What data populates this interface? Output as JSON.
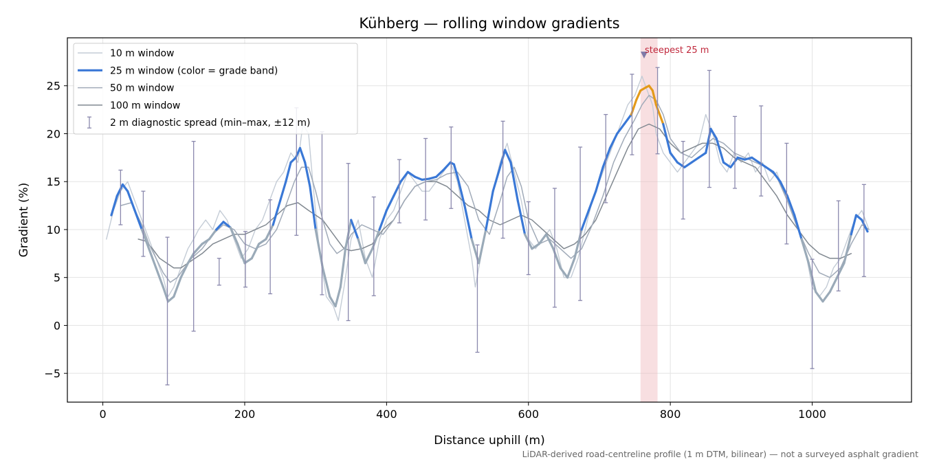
{
  "chart_data": {
    "type": "line",
    "title": "Kühberg — rolling window gradients",
    "xlabel": "Distance uphill (m)",
    "ylabel": "Gradient (%)",
    "xlim": [
      -50,
      1140
    ],
    "ylim": [
      -8,
      30
    ],
    "x_ticks": [
      0,
      200,
      400,
      600,
      800,
      1000
    ],
    "y_ticks": [
      -5,
      0,
      5,
      10,
      15,
      20,
      25
    ],
    "grid": true,
    "legend_position": "upper-left",
    "footnote": "LiDAR-derived road-centreline profile (1 m DTM, bilinear) — not a surveyed asphalt gradient",
    "legend": [
      {
        "label": "10 m window",
        "key": "w10"
      },
      {
        "label": "25 m window (color = grade band)",
        "key": "w25"
      },
      {
        "label": "50 m window",
        "key": "w50"
      },
      {
        "label": "100 m window",
        "key": "w100"
      },
      {
        "label": "2 m diagnostic spread (min–max, ±12 m)",
        "key": "err"
      }
    ],
    "colors": {
      "w10": "#c4ccd6",
      "w25_band_blue": "#3a78d6",
      "w25_band_gray": "#9aaab8",
      "w25_band_orange": "#e39a1a",
      "w25_band_red": "#d62020",
      "w50": "#a0aab8",
      "w100": "#808890",
      "errorbar": "#8a88ad",
      "highlight": "#f0b8bc",
      "marker": "#7f7aa8",
      "annot": "#c0283c"
    },
    "highlight": {
      "x_start": 758,
      "x_end": 782,
      "label": "steepest 25 m",
      "marker_x": 763,
      "marker_y": 28.2
    },
    "series": [
      {
        "name": "10 m window",
        "key": "w10",
        "x": [
          5,
          15,
          25,
          35,
          45,
          55,
          65,
          75,
          85,
          92,
          100,
          110,
          120,
          128,
          135,
          145,
          155,
          165,
          175,
          185,
          195,
          205,
          215,
          225,
          235,
          245,
          255,
          265,
          275,
          282,
          290,
          296,
          305,
          315,
          325,
          332,
          340,
          350,
          360,
          370,
          380,
          390,
          400,
          410,
          420,
          430,
          440,
          450,
          460,
          470,
          480,
          490,
          500,
          510,
          520,
          525,
          530,
          540,
          550,
          560,
          570,
          580,
          590,
          600,
          610,
          620,
          630,
          640,
          650,
          660,
          670,
          680,
          690,
          700,
          710,
          720,
          730,
          740,
          750,
          760,
          765,
          770,
          775,
          780,
          790,
          800,
          810,
          820,
          830,
          840,
          850,
          860,
          870,
          880,
          890,
          900,
          910,
          920,
          930,
          940,
          950,
          960,
          970,
          980,
          990,
          1000,
          1010,
          1020,
          1030,
          1040,
          1050,
          1060,
          1070,
          1080
        ],
        "y": [
          9,
          12,
          14,
          15,
          13,
          11,
          9,
          7,
          5,
          3,
          4,
          6,
          8,
          9,
          10,
          11,
          10,
          12,
          11,
          9,
          7,
          8,
          10,
          11,
          13,
          15,
          16,
          18,
          17,
          21,
          20,
          15,
          8,
          3,
          2,
          0.5,
          4,
          9,
          11,
          7,
          5,
          9,
          11,
          12,
          14,
          16,
          15,
          14,
          14,
          15,
          16,
          17,
          15,
          11,
          7,
          4,
          6,
          10,
          14,
          17,
          19,
          16,
          13,
          9,
          8,
          9,
          10,
          8,
          5,
          5,
          7,
          10,
          13,
          15,
          17,
          19,
          21,
          23,
          24,
          26,
          25,
          24,
          23,
          20,
          18,
          17,
          16,
          17,
          18,
          19,
          22,
          20,
          17,
          16,
          18,
          17,
          18,
          16,
          17,
          15,
          16,
          14,
          12,
          10,
          8,
          4,
          3,
          4,
          6,
          7,
          9,
          11,
          12,
          10
        ]
      },
      {
        "name": "25 m window (color = grade band)",
        "key": "w25",
        "x": [
          12,
          20,
          28,
          35,
          45,
          55,
          65,
          75,
          85,
          92,
          100,
          110,
          120,
          128,
          140,
          150,
          160,
          170,
          180,
          190,
          200,
          210,
          220,
          230,
          240,
          250,
          258,
          265,
          272,
          278,
          285,
          292,
          300,
          310,
          320,
          328,
          335,
          342,
          350,
          360,
          370,
          380,
          390,
          400,
          410,
          420,
          430,
          440,
          450,
          460,
          470,
          480,
          490,
          495,
          500,
          510,
          520,
          530,
          540,
          550,
          560,
          567,
          575,
          585,
          595,
          605,
          615,
          625,
          635,
          645,
          655,
          665,
          675,
          685,
          695,
          705,
          715,
          725,
          735,
          745,
          752,
          758,
          765,
          770,
          775,
          780,
          785,
          790,
          800,
          810,
          820,
          830,
          840,
          850,
          857,
          865,
          875,
          885,
          895,
          905,
          915,
          925,
          935,
          945,
          955,
          965,
          975,
          985,
          995,
          1005,
          1015,
          1025,
          1035,
          1045,
          1055,
          1062,
          1070,
          1078
        ],
        "y": [
          11.5,
          13.5,
          14.7,
          14.0,
          12.0,
          10.0,
          8.0,
          6.0,
          4.0,
          2.5,
          3.0,
          5.0,
          6.5,
          7.5,
          8.5,
          9.0,
          10.0,
          10.8,
          10.2,
          8.5,
          6.5,
          7.0,
          8.5,
          9.0,
          10.5,
          13.0,
          15.0,
          17.0,
          17.5,
          18.5,
          17.0,
          14.5,
          10.0,
          6.0,
          3.0,
          2.0,
          4.0,
          8.0,
          11.0,
          9.0,
          6.5,
          8.0,
          10.0,
          12.0,
          13.5,
          15.0,
          16.0,
          15.5,
          15.2,
          15.3,
          15.5,
          16.2,
          17.0,
          16.8,
          15.5,
          12.5,
          9.0,
          6.5,
          10.0,
          14.0,
          16.5,
          18.3,
          17.0,
          13.0,
          9.5,
          8.0,
          8.5,
          9.5,
          8.0,
          6.0,
          5.0,
          7.0,
          10.0,
          12.0,
          14.0,
          16.5,
          18.5,
          20.0,
          21.0,
          22.0,
          23.5,
          24.5,
          24.8,
          25.0,
          24.5,
          23.0,
          22.0,
          21.0,
          18.0,
          17.0,
          16.5,
          17.0,
          17.5,
          18.0,
          20.5,
          19.5,
          17.0,
          16.5,
          17.5,
          17.3,
          17.5,
          17.0,
          16.5,
          16.0,
          15.0,
          13.5,
          11.5,
          9.0,
          6.5,
          3.5,
          2.5,
          3.5,
          5.0,
          6.5,
          9.5,
          11.5,
          11.0,
          9.8
        ]
      },
      {
        "name": "50 m window",
        "key": "w50",
        "x": [
          25,
          40,
          55,
          65,
          75,
          85,
          95,
          105,
          115,
          125,
          140,
          155,
          170,
          185,
          200,
          215,
          230,
          245,
          258,
          270,
          280,
          290,
          300,
          310,
          320,
          330,
          340,
          350,
          365,
          380,
          395,
          410,
          425,
          440,
          455,
          470,
          485,
          500,
          515,
          530,
          545,
          560,
          570,
          580,
          590,
          600,
          615,
          630,
          645,
          660,
          675,
          690,
          705,
          720,
          735,
          750,
          760,
          770,
          780,
          790,
          800,
          815,
          830,
          845,
          860,
          875,
          890,
          905,
          920,
          935,
          950,
          965,
          980,
          995,
          1010,
          1025,
          1040,
          1055,
          1070,
          1080
        ],
        "y": [
          12.5,
          12.8,
          10.5,
          8.5,
          7.0,
          5.5,
          4.5,
          5.0,
          6.0,
          7.0,
          8.0,
          9.5,
          10.5,
          10.0,
          8.5,
          8.0,
          8.5,
          10.0,
          12.5,
          15.0,
          16.5,
          16.5,
          14.0,
          11.0,
          8.5,
          7.5,
          8.0,
          9.5,
          10.5,
          10.0,
          9.5,
          11.0,
          13.0,
          14.5,
          15.0,
          15.2,
          15.8,
          16.0,
          14.5,
          11.0,
          9.5,
          13.0,
          15.5,
          16.5,
          14.5,
          11.0,
          8.5,
          9.0,
          8.0,
          7.0,
          8.0,
          10.5,
          13.5,
          17.0,
          19.5,
          21.5,
          23.0,
          24.0,
          23.5,
          22.0,
          19.5,
          18.0,
          17.5,
          18.5,
          19.5,
          19.0,
          18.0,
          17.5,
          17.0,
          16.5,
          15.5,
          13.0,
          10.0,
          7.5,
          5.5,
          5.0,
          6.0,
          8.5,
          10.5,
          10.0
        ]
      },
      {
        "name": "100 m window",
        "key": "w100",
        "x": [
          50,
          60,
          70,
          80,
          90,
          100,
          110,
          120,
          130,
          140,
          155,
          170,
          185,
          200,
          215,
          230,
          245,
          260,
          275,
          290,
          300,
          310,
          320,
          330,
          340,
          350,
          365,
          380,
          395,
          410,
          425,
          440,
          455,
          470,
          485,
          500,
          515,
          530,
          545,
          560,
          575,
          590,
          605,
          620,
          635,
          650,
          665,
          680,
          695,
          710,
          725,
          740,
          755,
          770,
          785,
          800,
          815,
          830,
          845,
          860,
          875,
          890,
          905,
          920,
          935,
          950,
          965,
          980,
          995,
          1010,
          1025,
          1040,
          1055
        ],
        "y": [
          9.0,
          8.8,
          8.0,
          7.0,
          6.5,
          6.0,
          6.0,
          6.5,
          7.0,
          7.5,
          8.5,
          9.0,
          9.5,
          9.5,
          10.0,
          10.5,
          11.5,
          12.5,
          12.8,
          12.0,
          11.5,
          11.0,
          10.0,
          9.0,
          8.0,
          7.8,
          8.0,
          8.5,
          10.0,
          11.0,
          13.0,
          14.5,
          15.0,
          15.0,
          14.5,
          13.5,
          12.5,
          12.0,
          11.0,
          10.5,
          11.0,
          11.5,
          11.0,
          10.0,
          9.0,
          8.0,
          8.5,
          9.5,
          11.0,
          13.5,
          16.0,
          18.5,
          20.5,
          21.0,
          20.5,
          19.0,
          18.0,
          18.5,
          19.0,
          19.0,
          18.5,
          17.5,
          17.0,
          16.5,
          15.0,
          13.5,
          11.5,
          10.0,
          8.5,
          7.5,
          7.0,
          7.0,
          7.5
        ]
      },
      {
        "name": "2 m diagnostic spread (min–max, ±12 m)",
        "key": "err",
        "points": [
          {
            "x": 25,
            "lo": 10.5,
            "hi": 16.2
          },
          {
            "x": 57,
            "lo": 7.2,
            "hi": 14.0
          },
          {
            "x": 91,
            "lo": -6.2,
            "hi": 9.2
          },
          {
            "x": 128,
            "lo": -0.6,
            "hi": 19.2
          },
          {
            "x": 164,
            "lo": 4.2,
            "hi": 7.0
          },
          {
            "x": 201,
            "lo": 4.0,
            "hi": 9.8
          },
          {
            "x": 236,
            "lo": 3.3,
            "hi": 13.1
          },
          {
            "x": 273,
            "lo": 9.4,
            "hi": 22.7
          },
          {
            "x": 309,
            "lo": 3.2,
            "hi": 20.2
          },
          {
            "x": 346,
            "lo": 0.5,
            "hi": 16.9
          },
          {
            "x": 382,
            "lo": 3.1,
            "hi": 13.4
          },
          {
            "x": 418,
            "lo": 10.7,
            "hi": 17.3
          },
          {
            "x": 455,
            "lo": 11.0,
            "hi": 19.5
          },
          {
            "x": 491,
            "lo": 12.2,
            "hi": 20.7
          },
          {
            "x": 528,
            "lo": -2.8,
            "hi": 8.4
          },
          {
            "x": 564,
            "lo": 9.1,
            "hi": 21.3
          },
          {
            "x": 600,
            "lo": 5.3,
            "hi": 12.9
          },
          {
            "x": 637,
            "lo": 1.9,
            "hi": 14.3
          },
          {
            "x": 673,
            "lo": 2.6,
            "hi": 18.6
          },
          {
            "x": 709,
            "lo": 12.8,
            "hi": 22.0
          },
          {
            "x": 746,
            "lo": 17.8,
            "hi": 26.2
          },
          {
            "x": 782,
            "lo": 17.9,
            "hi": 26.9
          },
          {
            "x": 818,
            "lo": 11.1,
            "hi": 19.2
          },
          {
            "x": 855,
            "lo": 14.4,
            "hi": 26.6
          },
          {
            "x": 891,
            "lo": 14.3,
            "hi": 21.8
          },
          {
            "x": 928,
            "lo": 13.5,
            "hi": 22.9
          },
          {
            "x": 964,
            "lo": 8.5,
            "hi": 19.0
          },
          {
            "x": 1000,
            "lo": -4.5,
            "hi": 6.9
          },
          {
            "x": 1037,
            "lo": 3.6,
            "hi": 13.0
          },
          {
            "x": 1073,
            "lo": 5.1,
            "hi": 14.7
          }
        ]
      }
    ]
  }
}
